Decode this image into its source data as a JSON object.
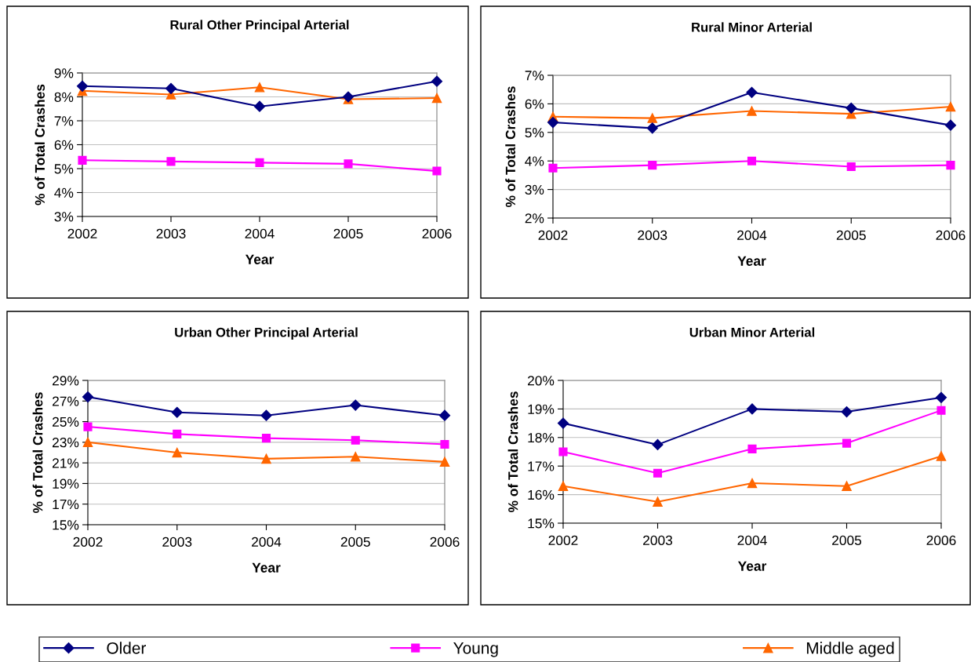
{
  "chart_data": [
    {
      "type": "line",
      "title": "Rural Other Principal Arterial",
      "xlabel": "Year",
      "ylabel": "% of Total Crashes",
      "categories": [
        "2002",
        "2003",
        "2004",
        "2005",
        "2006"
      ],
      "ylim": [
        3,
        9
      ],
      "yticks": [
        {
          "value": 3,
          "label": "3%"
        },
        {
          "value": 4,
          "label": "4%"
        },
        {
          "value": 5,
          "label": "5%"
        },
        {
          "value": 6,
          "label": "6%"
        },
        {
          "value": 7,
          "label": "7%"
        },
        {
          "value": 8,
          "label": "8%"
        },
        {
          "value": 9,
          "label": "9%"
        }
      ],
      "grid": "y",
      "legend": "bottom",
      "series": [
        {
          "name": "Older",
          "color": "#000080",
          "marker": "diamond",
          "values": [
            8.45,
            8.35,
            7.6,
            8.0,
            8.65
          ]
        },
        {
          "name": "Young",
          "color": "#ff00ff",
          "marker": "square",
          "values": [
            5.35,
            5.3,
            5.25,
            5.2,
            4.9
          ]
        },
        {
          "name": "Middle aged",
          "color": "#ff6600",
          "marker": "triangle",
          "values": [
            8.25,
            8.1,
            8.4,
            7.9,
            7.95
          ]
        }
      ]
    },
    {
      "type": "line",
      "title": "Rural Minor Arterial",
      "xlabel": "Year",
      "ylabel": "% of Total Crashes",
      "categories": [
        "2002",
        "2003",
        "2004",
        "2005",
        "2006"
      ],
      "ylim": [
        2,
        7
      ],
      "yticks": [
        {
          "value": 2,
          "label": "2%"
        },
        {
          "value": 3,
          "label": "3%"
        },
        {
          "value": 4,
          "label": "4%"
        },
        {
          "value": 5,
          "label": "5%"
        },
        {
          "value": 6,
          "label": "6%"
        },
        {
          "value": 7,
          "label": "7%"
        }
      ],
      "grid": "y",
      "legend": false,
      "series": [
        {
          "color": "#000080",
          "marker": "diamond",
          "values": [
            5.35,
            5.15,
            6.4,
            5.85,
            5.25
          ]
        },
        {
          "color": "#ff00ff",
          "marker": "square",
          "values": [
            3.75,
            3.85,
            4.0,
            3.8,
            3.85
          ]
        },
        {
          "color": "#ff6600",
          "marker": "triangle",
          "values": [
            5.55,
            5.5,
            5.75,
            5.65,
            5.9
          ]
        }
      ]
    },
    {
      "type": "line",
      "title": "Urban Other Principal Arterial",
      "xlabel": "Year",
      "ylabel": "% of Total Crashes",
      "categories": [
        "2002",
        "2003",
        "2004",
        "2005",
        "2006"
      ],
      "ylim": [
        15,
        29
      ],
      "yticks": [
        {
          "value": 15,
          "label": "15%"
        },
        {
          "value": 17,
          "label": "17%"
        },
        {
          "value": 19,
          "label": "19%"
        },
        {
          "value": 21,
          "label": "21%"
        },
        {
          "value": 23,
          "label": "23%"
        },
        {
          "value": 25,
          "label": "25%"
        },
        {
          "value": 27,
          "label": "27%"
        },
        {
          "value": 29,
          "label": "29%"
        }
      ],
      "grid": "y",
      "legend": false,
      "series": [
        {
          "color": "#000080",
          "marker": "diamond",
          "values": [
            27.4,
            25.9,
            25.6,
            26.6,
            25.6
          ]
        },
        {
          "color": "#ff00ff",
          "marker": "square",
          "values": [
            24.5,
            23.8,
            23.4,
            23.2,
            22.8
          ]
        },
        {
          "color": "#ff6600",
          "marker": "triangle",
          "values": [
            23.0,
            22.0,
            21.4,
            21.6,
            21.1
          ]
        }
      ]
    },
    {
      "type": "line",
      "title": "Urban Minor Arterial",
      "xlabel": "Year",
      "ylabel": "% of Total Crashes",
      "categories": [
        "2002",
        "2003",
        "2004",
        "2005",
        "2006"
      ],
      "ylim": [
        15,
        20
      ],
      "yticks": [
        {
          "value": 15,
          "label": "15%"
        },
        {
          "value": 16,
          "label": "16%"
        },
        {
          "value": 17,
          "label": "17%"
        },
        {
          "value": 18,
          "label": "18%"
        },
        {
          "value": 19,
          "label": "19%"
        },
        {
          "value": 20,
          "label": "20%"
        }
      ],
      "grid": "y",
      "legend": false,
      "series": [
        {
          "color": "#000080",
          "marker": "diamond",
          "values": [
            18.5,
            17.75,
            19.0,
            18.9,
            19.4
          ]
        },
        {
          "color": "#ff00ff",
          "marker": "square",
          "values": [
            17.5,
            16.75,
            17.6,
            17.8,
            18.95
          ]
        },
        {
          "color": "#ff6600",
          "marker": "triangle",
          "values": [
            16.3,
            15.75,
            16.4,
            16.3,
            17.35
          ]
        }
      ]
    }
  ]
}
